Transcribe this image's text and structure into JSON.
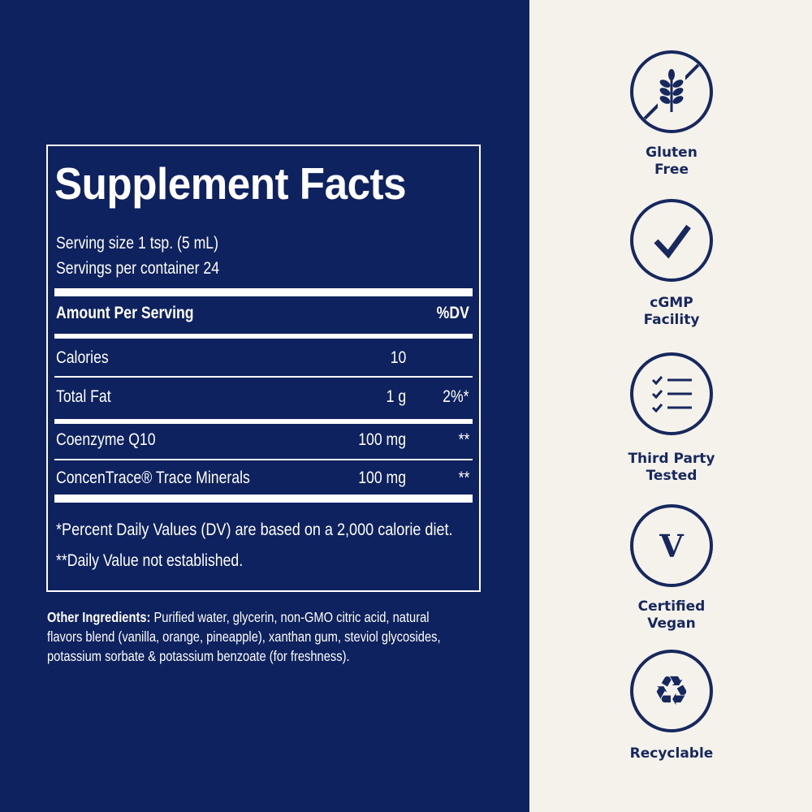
{
  "colors": {
    "navy": "#0f2260",
    "cream": "#f5f1eb"
  },
  "facts": {
    "title": "Supplement Facts",
    "serving_size": "Serving size 1 tsp. (5 mL)",
    "servings_per_container": "Servings per container 24",
    "header_amount": "Amount Per Serving",
    "header_dv": "%DV",
    "rows": [
      {
        "name": "Calories",
        "amount": "10",
        "dv": ""
      },
      {
        "name": "Total Fat",
        "amount": "1 g",
        "dv": "2%*"
      },
      {
        "name": "Coenzyme Q10",
        "amount": "100 mg",
        "dv": "**"
      },
      {
        "name": "ConcenTrace® Trace Minerals",
        "amount": "100 mg",
        "dv": "**"
      }
    ],
    "footnote1": "*Percent Daily Values (DV) are based on a 2,000 calorie diet.",
    "footnote2": "**Daily Value not established."
  },
  "ingredients": {
    "label": "Other Ingredients:",
    "text": " Purified water, glycerin, non-GMO citric acid, natural flavors blend (vanilla, orange, pineapple), xanthan gum, steviol glycosides, potassium sorbate & potassium benzoate (for freshness)."
  },
  "badges": [
    {
      "icon": "gluten-free-icon",
      "line1": "Gluten",
      "line2": "Free"
    },
    {
      "icon": "checkmark-icon",
      "line1": "cGMP",
      "line2": "Facility"
    },
    {
      "icon": "checklist-icon",
      "line1": "Third Party",
      "line2": "Tested"
    },
    {
      "icon": "vegan-v-icon",
      "line1": "Certified",
      "line2": "Vegan",
      "glyph": "V"
    },
    {
      "icon": "recycle-icon",
      "line1": "Recyclable",
      "line2": ""
    }
  ]
}
